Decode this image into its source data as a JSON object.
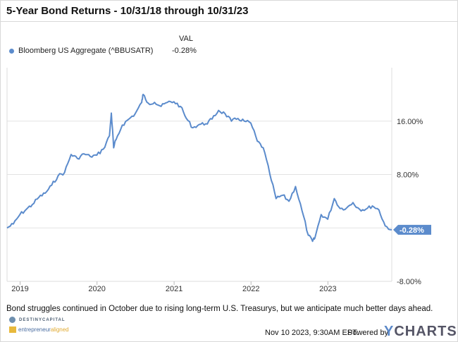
{
  "header": {
    "title": "5-Year Bond Returns - 10/31/18 through 10/31/23"
  },
  "legend": {
    "val_header": "VAL",
    "series_label": "Bloomberg US Aggregate (^BBUSATR)",
    "series_value": "-0.28%",
    "color": "#5b8bcc"
  },
  "footer": {
    "caption": "Bond struggles continued in October due to rising long-term U.S. Treasurys, but we anticipate much better days ahead.",
    "logo1": "DESTINYCAPITAL",
    "logo2_a": "entrepreneur",
    "logo2_b": "aligned",
    "timestamp": "Nov 10 2023, 9:30AM EST.",
    "powered_by": "Powered by",
    "brand_y": "Y",
    "brand_rest": "CHARTS"
  },
  "chart_data": {
    "type": "line",
    "title": "5-Year Bond Returns - 10/31/18 through 10/31/23",
    "series": [
      {
        "name": "Bloomberg US Aggregate (^BBUSATR)",
        "color": "#5b8bcc",
        "last_value_label": "-0.28%",
        "points": [
          [
            "2018-10-31",
            0.0
          ],
          [
            "2018-11-30",
            0.6
          ],
          [
            "2018-12-31",
            2.0
          ],
          [
            "2019-01-31",
            2.8
          ],
          [
            "2019-02-28",
            3.5
          ],
          [
            "2019-03-31",
            4.6
          ],
          [
            "2019-04-30",
            5.2
          ],
          [
            "2019-05-31",
            6.4
          ],
          [
            "2019-06-30",
            7.8
          ],
          [
            "2019-07-31",
            8.3
          ],
          [
            "2019-08-31",
            11.0
          ],
          [
            "2019-09-30",
            10.4
          ],
          [
            "2019-10-31",
            11.1
          ],
          [
            "2019-11-30",
            10.7
          ],
          [
            "2019-12-31",
            10.9
          ],
          [
            "2020-01-31",
            11.8
          ],
          [
            "2020-02-29",
            13.8
          ],
          [
            "2020-03-09",
            17.2
          ],
          [
            "2020-03-20",
            12.0
          ],
          [
            "2020-03-31",
            13.2
          ],
          [
            "2020-04-30",
            15.4
          ],
          [
            "2020-05-31",
            16.3
          ],
          [
            "2020-06-30",
            17.1
          ],
          [
            "2020-07-31",
            18.8
          ],
          [
            "2020-08-07",
            20.0
          ],
          [
            "2020-08-31",
            18.7
          ],
          [
            "2020-09-30",
            18.8
          ],
          [
            "2020-10-31",
            18.2
          ],
          [
            "2020-11-30",
            18.8
          ],
          [
            "2020-12-31",
            18.9
          ],
          [
            "2021-01-31",
            18.2
          ],
          [
            "2021-02-28",
            16.4
          ],
          [
            "2021-03-31",
            15.0
          ],
          [
            "2021-04-30",
            15.5
          ],
          [
            "2021-05-31",
            15.6
          ],
          [
            "2021-06-30",
            16.3
          ],
          [
            "2021-07-31",
            17.6
          ],
          [
            "2021-08-31",
            17.1
          ],
          [
            "2021-09-30",
            16.0
          ],
          [
            "2021-10-31",
            16.4
          ],
          [
            "2021-11-30",
            16.0
          ],
          [
            "2021-12-31",
            15.7
          ],
          [
            "2022-01-31",
            13.0
          ],
          [
            "2022-02-28",
            12.0
          ],
          [
            "2022-03-31",
            8.1
          ],
          [
            "2022-04-30",
            4.4
          ],
          [
            "2022-05-31",
            4.9
          ],
          [
            "2022-06-30",
            4.0
          ],
          [
            "2022-07-31",
            6.2
          ],
          [
            "2022-08-31",
            2.6
          ],
          [
            "2022-09-30",
            -1.1
          ],
          [
            "2022-10-20",
            -2.0
          ],
          [
            "2022-10-31",
            -1.5
          ],
          [
            "2022-11-30",
            2.0
          ],
          [
            "2022-12-31",
            1.3
          ],
          [
            "2023-01-31",
            4.4
          ],
          [
            "2023-02-28",
            2.9
          ],
          [
            "2023-03-31",
            3.0
          ],
          [
            "2023-04-30",
            3.8
          ],
          [
            "2023-05-31",
            2.8
          ],
          [
            "2023-06-30",
            2.8
          ],
          [
            "2023-07-31",
            3.3
          ],
          [
            "2023-08-31",
            2.7
          ],
          [
            "2023-09-30",
            0.3
          ],
          [
            "2023-10-31",
            -0.28
          ]
        ]
      }
    ],
    "x_ticks": [
      "2019",
      "2020",
      "2021",
      "2022",
      "2023"
    ],
    "y_ticks": [
      "16.00%",
      "8.00%",
      "0.00%",
      "-8.00%"
    ],
    "ylim": [
      -8,
      24
    ],
    "grid": true,
    "legend_position": "top-left"
  }
}
